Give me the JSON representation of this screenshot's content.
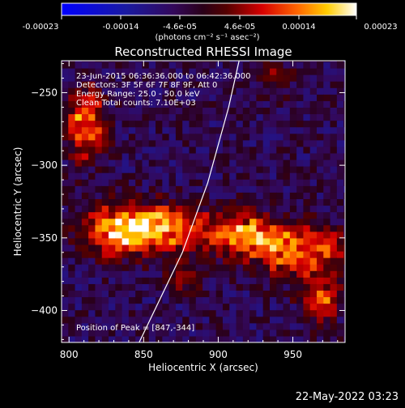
{
  "chart_data": {
    "type": "heatmap",
    "title": "Reconstructed RHESSI Image",
    "xlabel": "Heliocentric X (arcsec)",
    "ylabel": "Heliocentric Y (arcsec)",
    "xlim": [
      795,
      985
    ],
    "ylim": [
      -422,
      -228
    ],
    "x_ticks": [
      800,
      850,
      900,
      950
    ],
    "y_ticks": [
      -250,
      -300,
      -350,
      -400
    ],
    "grid": false,
    "colorbar": {
      "ticks": [
        "-0.00023",
        "-0.00014",
        "-4.6e-05",
        "4.6e-05",
        "0.00014",
        "0.00023"
      ],
      "unit_label": "(photons cm⁻² s⁻¹ asec⁻²)",
      "range": [
        -0.00023,
        0.00023
      ]
    },
    "annotations": [
      "23-Jun-2015 06:36:36.000 to 06:42:36.000",
      "Detectors: 3F 5F 6F 7F 8F 9F, Att 0",
      "Energy Range: 25.0 - 50.0 keV",
      "Clean    Total counts: 7.10E+03"
    ],
    "peak_label": "Position of Peak = [847,-344]",
    "timestamp": "22-May-2022 03:23",
    "sources": [
      {
        "x": 811,
        "y": -272,
        "peak": 0.0002,
        "sx": 9,
        "sy": 16
      },
      {
        "x": 830,
        "y": -345,
        "peak": 0.0002,
        "sx": 15,
        "sy": 12
      },
      {
        "x": 862,
        "y": -343,
        "peak": 0.00022,
        "sx": 19,
        "sy": 11
      },
      {
        "x": 916,
        "y": -348,
        "peak": 0.000215,
        "sx": 16,
        "sy": 11
      },
      {
        "x": 948,
        "y": -358,
        "peak": 0.000185,
        "sx": 14,
        "sy": 12
      },
      {
        "x": 975,
        "y": -357,
        "peak": 0.00012,
        "sx": 10,
        "sy": 10
      },
      {
        "x": 968,
        "y": -390,
        "peak": 0.00017,
        "sx": 9,
        "sy": 12
      },
      {
        "x": 878,
        "y": -376,
        "peak": 0.0001,
        "sx": 8,
        "sy": 7
      },
      {
        "x": 938,
        "y": -240,
        "peak": 9.5e-05,
        "sx": 7,
        "sy": 8
      }
    ],
    "limb_line": [
      [
        847,
        -422
      ],
      [
        876,
        -360
      ],
      [
        893,
        -312
      ],
      [
        907,
        -260
      ],
      [
        914,
        -228
      ]
    ]
  }
}
